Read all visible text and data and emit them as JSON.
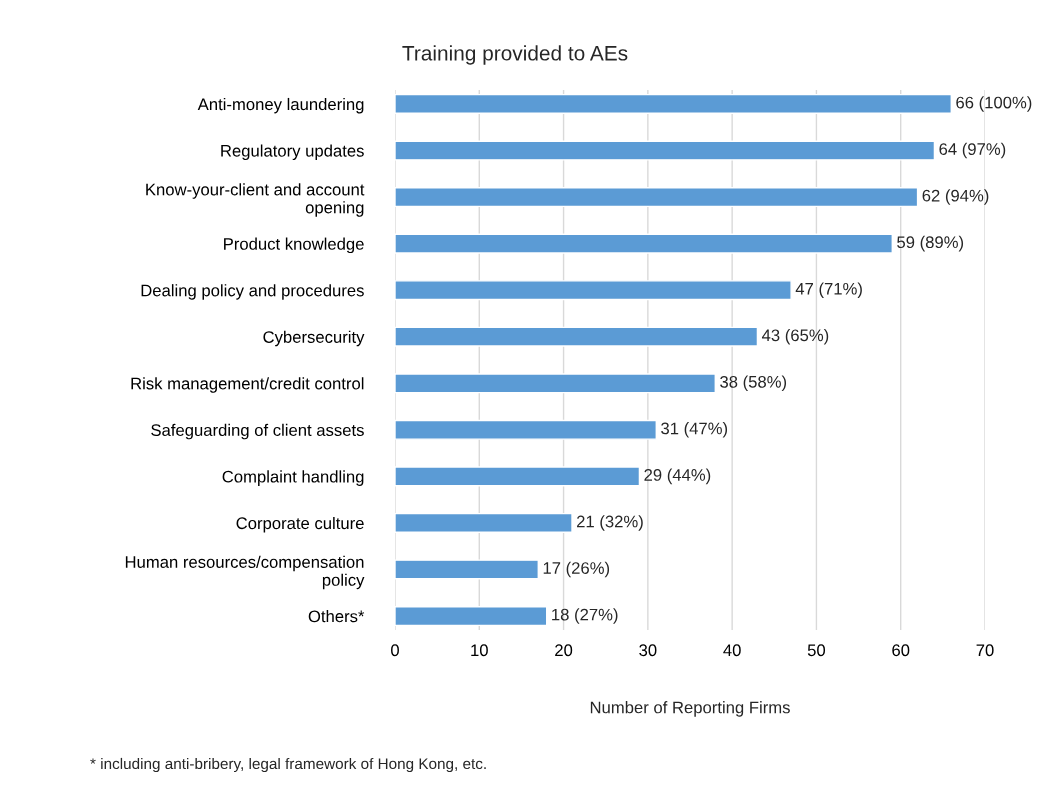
{
  "chart_data": {
    "type": "bar",
    "orientation": "horizontal",
    "title": "Training provided to AEs",
    "xlabel": "Number of Reporting Firms",
    "categories": [
      "Anti-money laundering",
      "Regulatory updates",
      "Know-your-client and account\nopening",
      "Product knowledge",
      "Dealing policy and procedures",
      "Cybersecurity",
      "Risk management/credit control",
      "Safeguarding of client assets",
      "Complaint handling",
      "Corporate culture",
      "Human resources/compensation\npolicy",
      "Others*"
    ],
    "values": [
      66,
      64,
      62,
      59,
      47,
      43,
      38,
      31,
      29,
      21,
      17,
      18
    ],
    "value_labels": [
      "66 (100%)",
      "64 (97%)",
      "62 (94%)",
      "59 (89%)",
      "47 (71%)",
      "43 (65%)",
      "38 (58%)",
      "31 (47%)",
      "29 (44%)",
      "21 (32%)",
      "17 (26%)",
      "18 (27%)"
    ],
    "color": "#5b9bd5",
    "xlim": [
      0,
      70
    ],
    "xticks": [
      0,
      10,
      20,
      30,
      40,
      50,
      60,
      70
    ],
    "grid": "x",
    "legend": false,
    "annotations": [
      "* including anti-bribery, legal framework of Hong Kong, etc."
    ]
  }
}
